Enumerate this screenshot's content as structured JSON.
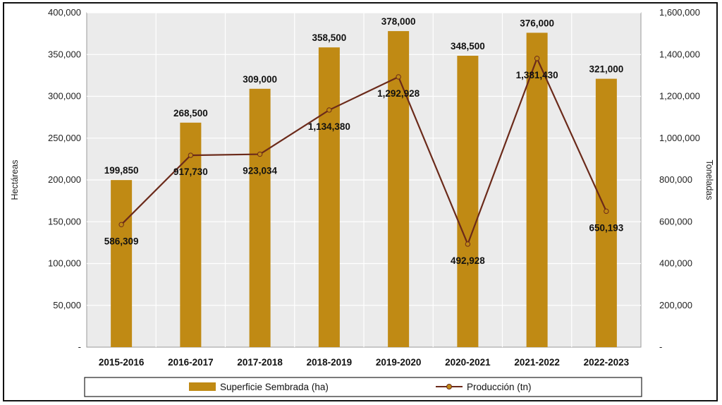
{
  "chart_data": {
    "type": "bar+line",
    "categories": [
      "2015-2016",
      "2016-2017",
      "2017-2018",
      "2018-2019",
      "2019-2020",
      "2020-2021",
      "2021-2022",
      "2022-2023"
    ],
    "series": [
      {
        "name": "Superficie Sembrada (ha)",
        "type": "bar",
        "axis": "left",
        "color": "#c08a14",
        "values": [
          199850,
          268500,
          309000,
          358500,
          378000,
          348500,
          376000,
          321000
        ],
        "labels": [
          "199,850",
          "268,500",
          "309,000",
          "358,500",
          "378,000",
          "348,500",
          "376,000",
          "321,000"
        ]
      },
      {
        "name": "Producción (tn)",
        "type": "line",
        "axis": "right",
        "color": "#6b2a1a",
        "values": [
          586309,
          917730,
          923034,
          1134380,
          1292928,
          492928,
          1381430,
          650193
        ],
        "labels": [
          "586,309",
          "917,730",
          "923,034",
          "1,134,380",
          "1,292,928",
          "492,928",
          "1,381,430",
          "650,193"
        ]
      }
    ],
    "y_left": {
      "label": "Hectáreas",
      "ylim": [
        0,
        400000
      ],
      "ticks": [
        0,
        50000,
        100000,
        150000,
        200000,
        250000,
        300000,
        350000,
        400000
      ],
      "tick_labels": [
        "-",
        "50,000",
        "100,000",
        "150,000",
        "200,000",
        "250,000",
        "300,000",
        "350,000",
        "400,000"
      ]
    },
    "y_right": {
      "label": "Toneladas",
      "ylim": [
        0,
        1600000
      ],
      "ticks": [
        0,
        200000,
        400000,
        600000,
        800000,
        1000000,
        1200000,
        1400000,
        1600000
      ],
      "tick_labels": [
        "-",
        "200,000",
        "400,000",
        "600,000",
        "800,000",
        "1,000,000",
        "1,200,000",
        "1,400,000",
        "1,600,000"
      ]
    },
    "grid": true,
    "legend": "bottom"
  }
}
